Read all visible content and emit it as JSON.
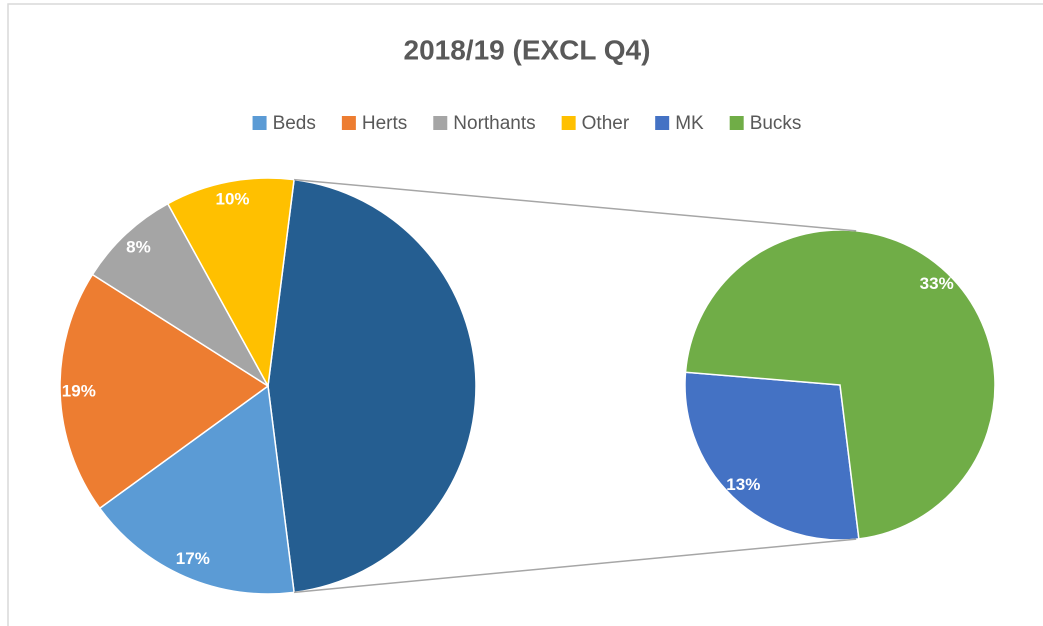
{
  "chart_data": {
    "type": "pie",
    "title": "2018/19 (EXCL Q4)",
    "categories": [
      "Beds",
      "Herts",
      "Northants",
      "Other",
      "MK",
      "Bucks"
    ],
    "values": [
      17,
      19,
      8,
      10,
      13,
      33
    ],
    "value_labels": [
      "17%",
      "19%",
      "8%",
      "10%",
      "13%",
      "33%"
    ],
    "colors": [
      "#5b9bd5",
      "#ed7d31",
      "#a5a5a5",
      "#ffc000",
      "#4472c4",
      "#70ad47"
    ],
    "secondary_count": 2,
    "combined_color": "#255e91",
    "legend": "top"
  }
}
